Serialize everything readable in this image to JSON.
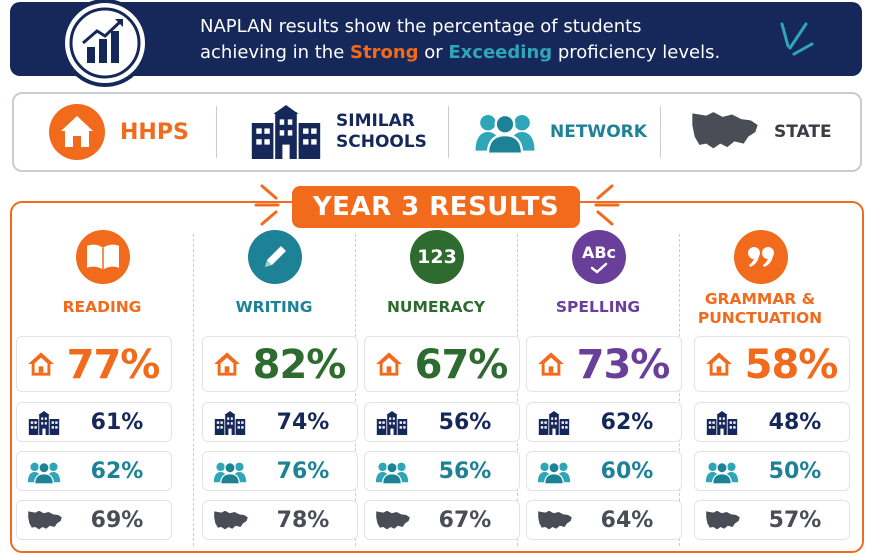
{
  "header": {
    "line1": "NAPLAN results show the percentage of students",
    "line2_pre": "achieving in the ",
    "strong": "Strong",
    "mid": " or ",
    "exceeding": "Exceeding",
    "line2_post": " proficiency levels."
  },
  "legend": {
    "hhps": "HHPS",
    "similar_line1": "SIMILAR",
    "similar_line2": "SCHOOLS",
    "network": "NETWORK",
    "state": "STATE"
  },
  "section_title": "YEAR 3 RESULTS",
  "colors": {
    "navy": "#16285a",
    "orange": "#f26a1b",
    "teal": "#1d8296",
    "green": "#2e6b2f",
    "purple": "#6a3f9a",
    "grey": "#4a4d55"
  },
  "subjects": [
    {
      "label_line1": "READING",
      "label_line2": "",
      "icon": "book-icon",
      "color": "#f26a1b",
      "hhps": "77%",
      "similar": "61%",
      "network": "62%",
      "state": "69%"
    },
    {
      "label_line1": "WRITING",
      "label_line2": "",
      "icon": "pencil-icon",
      "color": "#1d8296",
      "hhps": "82%",
      "similar": "74%",
      "network": "76%",
      "state": "78%"
    },
    {
      "label_line1": "NUMERACY",
      "label_line2": "",
      "icon": "numbers-icon",
      "color": "#2e6b2f",
      "hhps": "67%",
      "similar": "56%",
      "network": "56%",
      "state": "67%"
    },
    {
      "label_line1": "SPELLING",
      "label_line2": "",
      "icon": "abc-check-icon",
      "color": "#6a3f9a",
      "hhps": "73%",
      "similar": "62%",
      "network": "60%",
      "state": "64%"
    },
    {
      "label_line1": "GRAMMAR &",
      "label_line2": "PUNCTUATION",
      "icon": "quote-icon",
      "color": "#f26a1b",
      "hhps": "58%",
      "similar": "48%",
      "network": "50%",
      "state": "57%"
    }
  ],
  "numeracy_icon_text": "123",
  "spelling_icon_text": "ABc"
}
